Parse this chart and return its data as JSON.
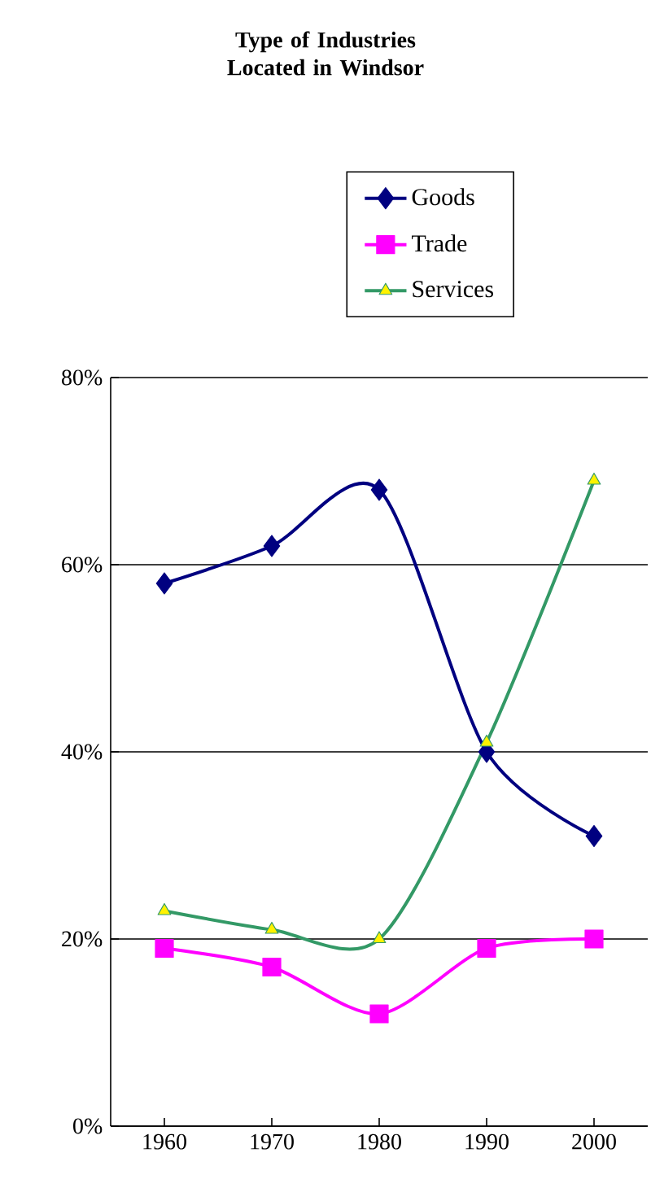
{
  "chart_data": {
    "type": "line",
    "title": "Type of Industries Located in Windsor",
    "categories": [
      "1960",
      "1970",
      "1980",
      "1990",
      "2000"
    ],
    "series": [
      {
        "name": "Goods",
        "color": "#000080",
        "marker": "diamond",
        "values": [
          58,
          62,
          68,
          40,
          31
        ]
      },
      {
        "name": "Trade",
        "color": "#ff00ff",
        "marker": "square",
        "values": [
          19,
          17,
          12,
          19,
          20
        ]
      },
      {
        "name": "Services",
        "color": "#339966",
        "marker": "triangle",
        "values": [
          23,
          21,
          20,
          41,
          69
        ]
      }
    ],
    "ylim": [
      0,
      80
    ],
    "yticks": [
      {
        "value": 0,
        "label": "0%"
      },
      {
        "value": 20,
        "label": "20%"
      },
      {
        "value": 40,
        "label": "40%"
      },
      {
        "value": 60,
        "label": "60%"
      },
      {
        "value": 80,
        "label": "80%"
      }
    ],
    "grid": "y",
    "legend": "top",
    "line_style": "solid"
  }
}
